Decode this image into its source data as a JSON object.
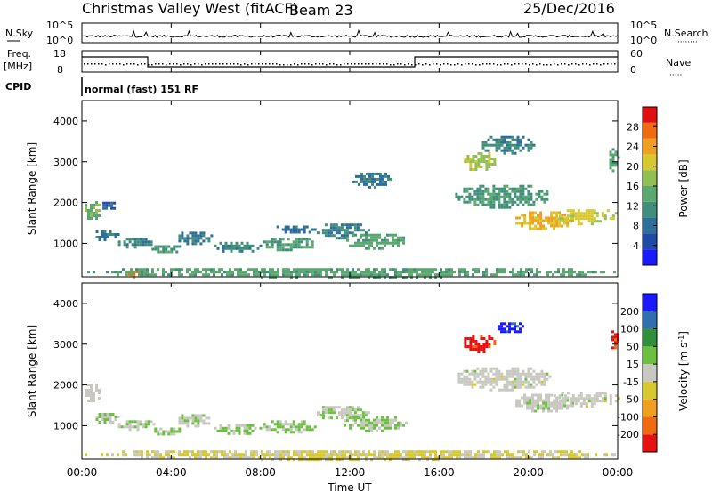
{
  "header": {
    "title": "Christmas Valley West (fitACF)",
    "beam": "Beam 23",
    "date": "25/Dec/2016"
  },
  "top_panels": {
    "nsky_label": "N.Sky",
    "nsky_ticks": [
      "10^5",
      "10^0"
    ],
    "nsearch_label": "N.Search",
    "nsearch_ticks": [
      "10^5",
      "10^0"
    ],
    "freq_label": "Freq.",
    "freq_unit": "[MHz]",
    "freq_ticks": [
      "18",
      "8"
    ],
    "nave_label": "Nave",
    "nave_ticks": [
      "60",
      "0"
    ],
    "cpid_label": "CPID",
    "cpid_text": "normal (fast) 151 RF"
  },
  "x_axis": {
    "label": "Time UT",
    "ticks": [
      "00:00",
      "04:00",
      "08:00",
      "12:00",
      "16:00",
      "20:00",
      "00:00"
    ]
  },
  "colors": {
    "power_scale": [
      "#1a1aff",
      "#1f4aa6",
      "#2e6e9a",
      "#3f8f7a",
      "#5aa870",
      "#8fbf55",
      "#d8c830",
      "#f0a020",
      "#f06a10",
      "#e01010"
    ],
    "velocity_scale": [
      "#e81010",
      "#f06a10",
      "#f0a020",
      "#d8c830",
      "#c8c8c0",
      "#6cc040",
      "#2f8f3a",
      "#2f6fb0",
      "#1a1aff"
    ]
  },
  "chart_data": [
    {
      "type": "heatmap",
      "name": "power",
      "ylabel": "Slant Range [km]",
      "yticks": [
        "1000",
        "2000",
        "3000",
        "4000"
      ],
      "ylim": [
        180,
        4500
      ],
      "xlim_hours": [
        0,
        24
      ],
      "colorbar_label": "Power [dB]",
      "colorbar_ticks": [
        "4",
        "8",
        "12",
        "16",
        "20",
        "24",
        "28"
      ],
      "colorbar_range": [
        0,
        32
      ],
      "blobs": [
        {
          "t": [
            0.0,
            0.8
          ],
          "r": [
            1600,
            2100
          ],
          "v": 16
        },
        {
          "t": [
            0.8,
            1.5
          ],
          "r": [
            1800,
            2150
          ],
          "v": 6
        },
        {
          "t": [
            0.5,
            1.6
          ],
          "r": [
            1080,
            1380
          ],
          "v": 9
        },
        {
          "t": [
            1.5,
            3.2
          ],
          "r": [
            920,
            1200
          ],
          "v": 10
        },
        {
          "t": [
            3.0,
            4.4
          ],
          "r": [
            780,
            1020
          ],
          "v": 12
        },
        {
          "t": [
            4.2,
            5.8
          ],
          "r": [
            1000,
            1350
          ],
          "v": 9
        },
        {
          "t": [
            5.8,
            8.0
          ],
          "r": [
            800,
            1100
          ],
          "v": 11
        },
        {
          "t": [
            8.0,
            10.5
          ],
          "r": [
            850,
            1200
          ],
          "v": 13
        },
        {
          "t": [
            8.6,
            10.4
          ],
          "r": [
            1250,
            1500
          ],
          "v": 8
        },
        {
          "t": [
            10.4,
            12.8
          ],
          "r": [
            1150,
            1550
          ],
          "v": 10
        },
        {
          "t": [
            11.6,
            14.5
          ],
          "r": [
            900,
            1300
          ],
          "v": 14
        },
        {
          "t": [
            12.0,
            13.8
          ],
          "r": [
            2400,
            2800
          ],
          "v": 9
        },
        {
          "t": [
            16.6,
            21.0
          ],
          "r": [
            1900,
            2500
          ],
          "v": 12
        },
        {
          "t": [
            19.3,
            22.0
          ],
          "r": [
            1350,
            1850
          ],
          "v": 22
        },
        {
          "t": [
            21.0,
            24.0
          ],
          "r": [
            1500,
            1900
          ],
          "v": 20
        },
        {
          "t": [
            17.0,
            18.5
          ],
          "r": [
            2800,
            3300
          ],
          "v": 18
        },
        {
          "t": [
            17.8,
            20.2
          ],
          "r": [
            3200,
            3700
          ],
          "v": 10
        },
        {
          "t": [
            23.5,
            24.0
          ],
          "r": [
            2800,
            3400
          ],
          "v": 14
        },
        {
          "t": [
            1.8,
            2.8
          ],
          "r": [
            200,
            400
          ],
          "v": 26
        },
        {
          "t": [
            0.0,
            24.0
          ],
          "r": [
            190,
            460
          ],
          "v": 14
        }
      ]
    },
    {
      "type": "heatmap",
      "name": "velocity",
      "ylabel": "Slant Range [km]",
      "yticks": [
        "1000",
        "2000",
        "3000",
        "4000"
      ],
      "ylim": [
        180,
        4500
      ],
      "xlim_hours": [
        0,
        24
      ],
      "colorbar_label": "Velocity [m s^-1]",
      "colorbar_ticks": [
        "-200",
        "-100",
        "-50",
        "-15",
        "15",
        "50",
        "100",
        "200"
      ],
      "colorbar_range": [
        -250,
        250
      ],
      "blobs": [
        {
          "t": [
            0.0,
            0.8
          ],
          "r": [
            1600,
            2100
          ],
          "v": 0
        },
        {
          "t": [
            0.5,
            1.6
          ],
          "r": [
            1080,
            1380
          ],
          "v": 25
        },
        {
          "t": [
            1.5,
            3.2
          ],
          "r": [
            920,
            1200
          ],
          "v": 30
        },
        {
          "t": [
            3.0,
            4.4
          ],
          "r": [
            780,
            1020
          ],
          "v": 35
        },
        {
          "t": [
            4.2,
            5.8
          ],
          "r": [
            1000,
            1350
          ],
          "v": 20
        },
        {
          "t": [
            5.8,
            8.0
          ],
          "r": [
            800,
            1100
          ],
          "v": 30
        },
        {
          "t": [
            8.0,
            10.5
          ],
          "r": [
            850,
            1200
          ],
          "v": 40
        },
        {
          "t": [
            10.4,
            12.8
          ],
          "r": [
            1150,
            1550
          ],
          "v": 20
        },
        {
          "t": [
            11.6,
            14.5
          ],
          "r": [
            900,
            1300
          ],
          "v": 30
        },
        {
          "t": [
            16.6,
            21.0
          ],
          "r": [
            1900,
            2500
          ],
          "v": 0
        },
        {
          "t": [
            19.3,
            22.0
          ],
          "r": [
            1350,
            1850
          ],
          "v": 5
        },
        {
          "t": [
            21.0,
            24.0
          ],
          "r": [
            1500,
            1900
          ],
          "v": 0
        },
        {
          "t": [
            17.0,
            18.5
          ],
          "r": [
            2800,
            3300
          ],
          "v": -220
        },
        {
          "t": [
            18.5,
            19.8
          ],
          "r": [
            3300,
            3600
          ],
          "v": 220
        },
        {
          "t": [
            23.6,
            24.0
          ],
          "r": [
            2900,
            3400
          ],
          "v": -210
        },
        {
          "t": [
            0.0,
            24.0
          ],
          "r": [
            190,
            460
          ],
          "v": -30
        }
      ]
    }
  ]
}
